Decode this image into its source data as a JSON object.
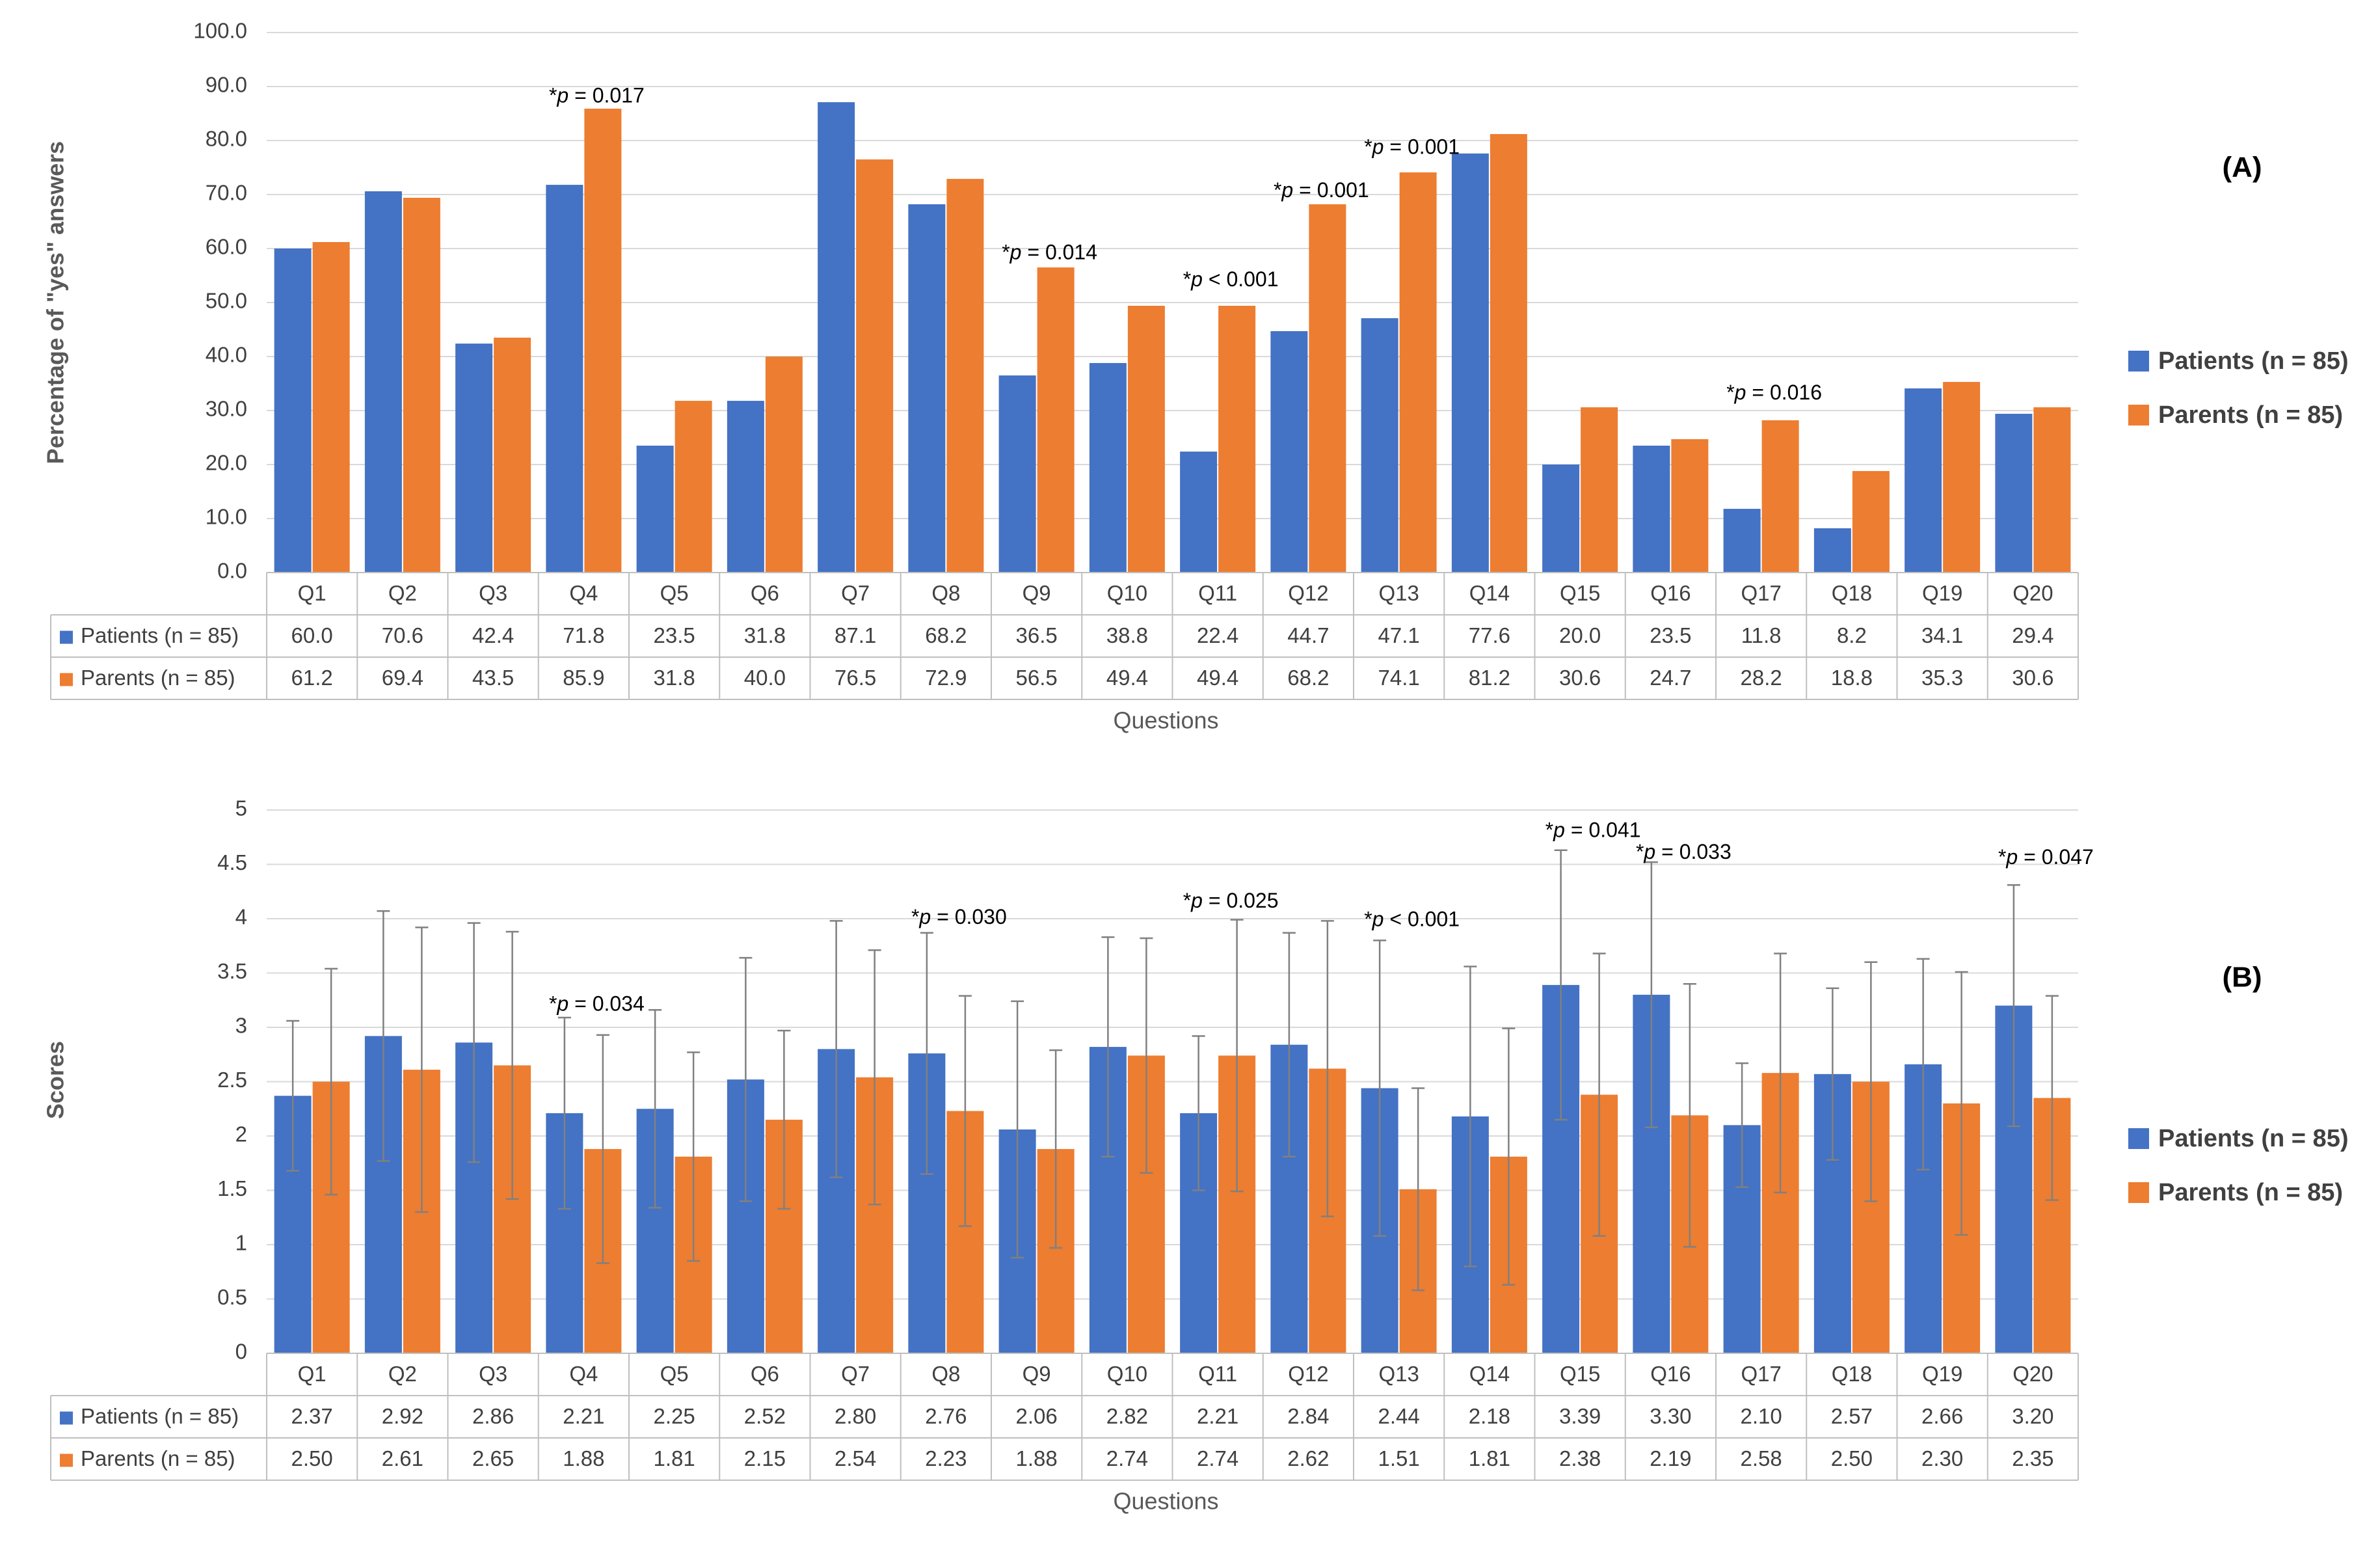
{
  "colors": {
    "patients": "#4472C4",
    "parents": "#ED7D31",
    "grid": "#D9D9D9",
    "errorbar": "#808080"
  },
  "chart_data": [
    {
      "type": "bar",
      "panel_label": "(A)",
      "ylabel": "Percentage of \"yes\" answers",
      "xlabel": "Questions",
      "ylim": [
        0,
        100
      ],
      "yticks": [
        "0.0",
        "10.0",
        "20.0",
        "30.0",
        "40.0",
        "50.0",
        "60.0",
        "70.0",
        "80.0",
        "90.0",
        "100.0"
      ],
      "grid": true,
      "legend_position": "right",
      "categories": [
        "Q1",
        "Q2",
        "Q3",
        "Q4",
        "Q5",
        "Q6",
        "Q7",
        "Q8",
        "Q9",
        "Q10",
        "Q11",
        "Q12",
        "Q13",
        "Q14",
        "Q15",
        "Q16",
        "Q17",
        "Q18",
        "Q19",
        "Q20"
      ],
      "series": [
        {
          "name": "Patients (n = 85)",
          "values": [
            60.0,
            70.6,
            42.4,
            71.8,
            23.5,
            31.8,
            87.1,
            68.2,
            36.5,
            38.8,
            22.4,
            44.7,
            47.1,
            77.6,
            20.0,
            23.5,
            11.8,
            8.2,
            34.1,
            29.4
          ],
          "labels": [
            "60.0",
            "70.6",
            "42.4",
            "71.8",
            "23.5",
            "31.8",
            "87.1",
            "68.2",
            "36.5",
            "38.8",
            "22.4",
            "44.7",
            "47.1",
            "77.6",
            "20.0",
            "23.5",
            "11.8",
            "8.2",
            "34.1",
            "29.4"
          ]
        },
        {
          "name": "Parents (n = 85)",
          "values": [
            61.2,
            69.4,
            43.5,
            85.9,
            31.8,
            40.0,
            76.5,
            72.9,
            56.5,
            49.4,
            49.4,
            68.2,
            74.1,
            81.2,
            30.6,
            24.7,
            28.2,
            18.8,
            35.3,
            30.6
          ],
          "labels": [
            "61.2",
            "69.4",
            "43.5",
            "85.9",
            "31.8",
            "40.0",
            "76.5",
            "72.9",
            "56.5",
            "49.4",
            "49.4",
            "68.2",
            "74.1",
            "81.2",
            "30.6",
            "24.7",
            "28.2",
            "18.8",
            "35.3",
            "30.6"
          ]
        }
      ],
      "annotations": [
        {
          "category": "Q4",
          "prefix": "*",
          "p": "p",
          "suffix": " = 0.017",
          "y": 88
        },
        {
          "category": "Q9",
          "prefix": "*",
          "p": "p",
          "suffix": " = 0.014",
          "y": 59
        },
        {
          "category": "Q11",
          "prefix": "*",
          "p": "p",
          "suffix": " < 0.001",
          "y": 54
        },
        {
          "category": "Q12",
          "prefix": "*",
          "p": "p",
          "suffix": " = 0.001",
          "y": 70.5
        },
        {
          "category": "Q13",
          "prefix": "*",
          "p": "p",
          "suffix": " = 0.001",
          "y": 78.5
        },
        {
          "category": "Q17",
          "prefix": "*",
          "p": "p",
          "suffix": " = 0.016",
          "y": 33
        }
      ]
    },
    {
      "type": "bar",
      "panel_label": "(B)",
      "ylabel": "Scores",
      "xlabel": "Questions",
      "ylim": [
        0,
        5
      ],
      "yticks": [
        "0",
        "0.5",
        "1",
        "1.5",
        "2",
        "2.5",
        "3",
        "3.5",
        "4",
        "4.5",
        "5"
      ],
      "grid": true,
      "legend_position": "right",
      "categories": [
        "Q1",
        "Q2",
        "Q3",
        "Q4",
        "Q5",
        "Q6",
        "Q7",
        "Q8",
        "Q9",
        "Q10",
        "Q11",
        "Q12",
        "Q13",
        "Q14",
        "Q15",
        "Q16",
        "Q17",
        "Q18",
        "Q19",
        "Q20"
      ],
      "series": [
        {
          "name": "Patients (n = 85)",
          "values": [
            2.37,
            2.92,
            2.86,
            2.21,
            2.25,
            2.52,
            2.8,
            2.76,
            2.06,
            2.82,
            2.21,
            2.84,
            2.44,
            2.18,
            3.39,
            3.3,
            2.1,
            2.57,
            2.66,
            3.2
          ],
          "labels": [
            "2.37",
            "2.92",
            "2.86",
            "2.21",
            "2.25",
            "2.52",
            "2.80",
            "2.76",
            "2.06",
            "2.82",
            "2.21",
            "2.84",
            "2.44",
            "2.18",
            "3.39",
            "3.30",
            "2.10",
            "2.57",
            "2.66",
            "3.20"
          ],
          "error": [
            0.69,
            1.15,
            1.1,
            0.88,
            0.91,
            1.12,
            1.18,
            1.11,
            1.18,
            1.01,
            0.71,
            1.03,
            1.36,
            1.38,
            1.24,
            1.22,
            0.57,
            0.79,
            0.97,
            1.11
          ]
        },
        {
          "name": "Parents (n = 85)",
          "values": [
            2.5,
            2.61,
            2.65,
            1.88,
            1.81,
            2.15,
            2.54,
            2.23,
            1.88,
            2.74,
            2.74,
            2.62,
            1.51,
            1.81,
            2.38,
            2.19,
            2.58,
            2.5,
            2.3,
            2.35
          ],
          "labels": [
            "2.50",
            "2.61",
            "2.65",
            "1.88",
            "1.81",
            "2.15",
            "2.54",
            "2.23",
            "1.88",
            "2.74",
            "2.74",
            "2.62",
            "1.51",
            "1.81",
            "2.38",
            "2.19",
            "2.58",
            "2.50",
            "2.30",
            "2.35"
          ],
          "error": [
            1.04,
            1.31,
            1.23,
            1.05,
            0.96,
            0.82,
            1.17,
            1.06,
            0.91,
            1.08,
            1.25,
            1.36,
            0.93,
            1.18,
            1.3,
            1.21,
            1.1,
            1.1,
            1.21,
            0.94
          ]
        }
      ],
      "annotations": [
        {
          "category": "Q4",
          "prefix": "*",
          "p": "p",
          "suffix": " = 0.034",
          "y": 3.2
        },
        {
          "category": "Q8",
          "prefix": "*",
          "p": "p",
          "suffix": " = 0.030",
          "y": 4.0
        },
        {
          "category": "Q11",
          "prefix": "*",
          "p": "p",
          "suffix": " = 0.025",
          "y": 4.15
        },
        {
          "category": "Q13",
          "prefix": "*",
          "p": "p",
          "suffix": " < 0.001",
          "y": 3.98
        },
        {
          "category": "Q15",
          "prefix": "*",
          "p": "p",
          "suffix": " = 0.041",
          "y": 4.8
        },
        {
          "category": "Q16",
          "prefix": "*",
          "p": "p",
          "suffix": " = 0.033",
          "y": 4.6
        },
        {
          "category": "Q20",
          "prefix": "*",
          "p": "p",
          "suffix": " = 0.047",
          "y": 4.55
        }
      ]
    }
  ]
}
